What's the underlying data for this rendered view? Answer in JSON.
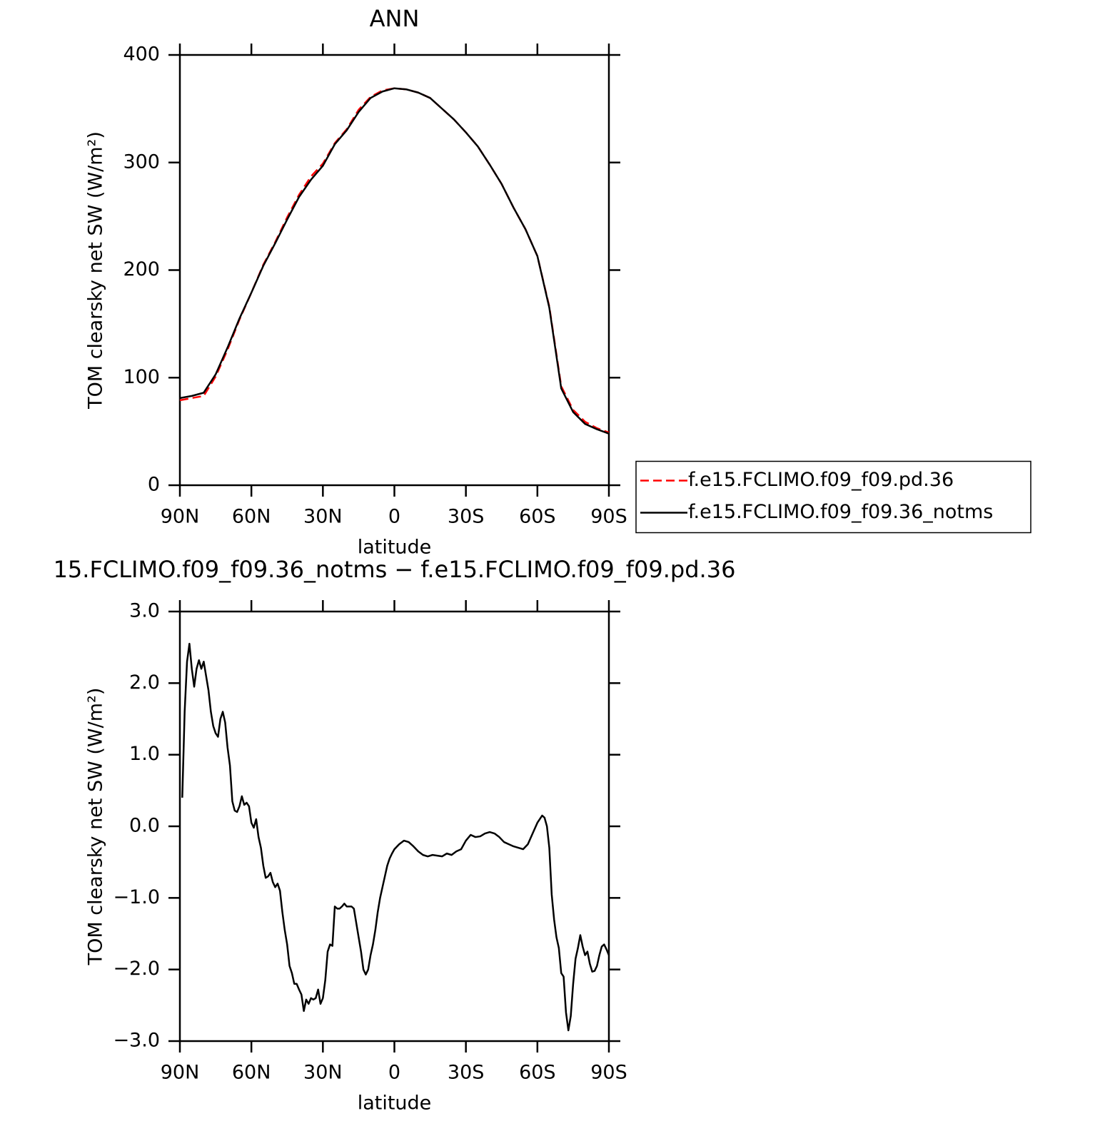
{
  "chart_data": [
    {
      "type": "line",
      "title": "ANN",
      "ylabel": "TOM clearsky net SW (W/m²)",
      "xlabel": "latitude",
      "xlim": [
        90,
        -90
      ],
      "xticks": [
        {
          "value": 90,
          "label": "90N"
        },
        {
          "value": 60,
          "label": "60N"
        },
        {
          "value": 30,
          "label": "30N"
        },
        0,
        {
          "value": -30,
          "label": "30S"
        },
        {
          "value": -60,
          "label": "60S"
        },
        {
          "value": -90,
          "label": "90S"
        }
      ],
      "ylim": [
        0,
        400
      ],
      "yticks": [
        0,
        100,
        200,
        300,
        400
      ],
      "legend": "right",
      "x": [
        90,
        85,
        80,
        75,
        70,
        65,
        60,
        55,
        50,
        45,
        40,
        35,
        30,
        25,
        20,
        15,
        10,
        5,
        0,
        -5,
        -10,
        -15,
        -20,
        -25,
        -30,
        -35,
        -40,
        -45,
        -50,
        -55,
        -60,
        -65,
        -70,
        -75,
        -80,
        -85,
        -90
      ],
      "series": [
        {
          "name": "f.e15.FCLIMO.f09_f09.pd.36",
          "color": "#ff0000",
          "linestyle": "dashed",
          "values": [
            79,
            81,
            83,
            101,
            126,
            154,
            179,
            205,
            226,
            249,
            270,
            287,
            299,
            318,
            331,
            349,
            361,
            367,
            369,
            368,
            365,
            360,
            350,
            340,
            328,
            315,
            298,
            280,
            258,
            238,
            213,
            166,
            92,
            70,
            59,
            53,
            49
          ]
        },
        {
          "name": "f.e15.FCLIMO.f09_f09.36_notms",
          "color": "#000000",
          "linestyle": "solid",
          "values": [
            81,
            83,
            86,
            103,
            128,
            155,
            179,
            204,
            225,
            247,
            268,
            284,
            297,
            317,
            330,
            347,
            360,
            366,
            369,
            368,
            365,
            360,
            350,
            340,
            328,
            315,
            298,
            280,
            258,
            238,
            213,
            165,
            90,
            68,
            57,
            52,
            48
          ]
        }
      ]
    },
    {
      "type": "line",
      "title": "15.FCLIMO.f09_f09.36_notms − f.e15.FCLIMO.f09_f09.pd.36",
      "ylabel": "TOM clearsky net SW (W/m²)",
      "xlabel": "latitude",
      "xlim": [
        90,
        -90
      ],
      "xticks": [
        {
          "value": 90,
          "label": "90N"
        },
        {
          "value": 60,
          "label": "60N"
        },
        {
          "value": 30,
          "label": "30N"
        },
        0,
        {
          "value": -30,
          "label": "30S"
        },
        {
          "value": -60,
          "label": "60S"
        },
        {
          "value": -90,
          "label": "90S"
        }
      ],
      "ylim": [
        -3,
        3
      ],
      "yticks": [
        {
          "value": -3,
          "label": "−3.0"
        },
        {
          "value": -2,
          "label": "−2.0"
        },
        {
          "value": -1,
          "label": "−1.0"
        },
        {
          "value": 0,
          "label": "0.0"
        },
        {
          "value": 1,
          "label": "1.0"
        },
        {
          "value": 2,
          "label": "2.0"
        },
        {
          "value": 3,
          "label": "3.0"
        }
      ],
      "x": [
        89,
        88,
        87,
        86,
        85,
        84,
        83,
        82,
        81,
        80,
        79,
        78,
        77,
        76,
        75,
        74,
        73,
        72,
        71,
        70,
        69,
        68,
        67,
        66,
        65,
        64,
        63,
        62,
        61,
        60,
        59,
        58,
        57,
        56,
        55,
        54,
        53,
        52,
        51,
        50,
        49,
        48,
        47,
        46,
        45,
        44,
        43,
        42,
        41,
        40,
        39,
        38,
        37,
        36,
        35,
        34,
        33,
        32,
        31,
        30,
        29,
        28,
        27,
        26,
        25,
        24,
        23,
        22,
        21,
        20,
        19,
        18,
        17,
        16,
        15,
        14,
        13,
        12,
        11,
        10,
        9,
        8,
        7,
        6,
        5,
        4,
        3,
        2,
        1,
        0,
        -2,
        -4,
        -6,
        -8,
        -10,
        -12,
        -14,
        -16,
        -18,
        -20,
        -22,
        -24,
        -26,
        -28,
        -30,
        -32,
        -34,
        -36,
        -38,
        -40,
        -42,
        -44,
        -46,
        -48,
        -50,
        -52,
        -54,
        -56,
        -58,
        -60,
        -62,
        -63,
        -64,
        -65,
        -66,
        -67,
        -68,
        -69,
        -70,
        -71,
        -72,
        -73,
        -74,
        -75,
        -76,
        -77,
        -78,
        -79,
        -80,
        -81,
        -82,
        -83,
        -84,
        -85,
        -86,
        -87,
        -88,
        -89,
        -90
      ],
      "series": [
        {
          "color": "#000000",
          "linestyle": "solid",
          "values": [
            0.4,
            1.6,
            2.3,
            2.55,
            2.2,
            1.95,
            2.2,
            2.32,
            2.2,
            2.3,
            2.1,
            1.9,
            1.6,
            1.4,
            1.3,
            1.25,
            1.5,
            1.6,
            1.45,
            1.1,
            0.85,
            0.35,
            0.22,
            0.2,
            0.28,
            0.42,
            0.3,
            0.33,
            0.28,
            0.05,
            -0.02,
            0.1,
            -0.15,
            -0.3,
            -0.55,
            -0.72,
            -0.7,
            -0.65,
            -0.78,
            -0.85,
            -0.8,
            -0.9,
            -1.2,
            -1.45,
            -1.65,
            -1.95,
            -2.05,
            -2.2,
            -2.2,
            -2.28,
            -2.35,
            -2.58,
            -2.42,
            -2.48,
            -2.4,
            -2.42,
            -2.4,
            -2.28,
            -2.48,
            -2.4,
            -2.15,
            -1.75,
            -1.65,
            -1.67,
            -1.12,
            -1.15,
            -1.15,
            -1.12,
            -1.08,
            -1.12,
            -1.12,
            -1.12,
            -1.15,
            -1.35,
            -1.55,
            -1.75,
            -2.0,
            -2.07,
            -2.0,
            -1.8,
            -1.65,
            -1.45,
            -1.2,
            -1.0,
            -0.85,
            -0.7,
            -0.55,
            -0.45,
            -0.38,
            -0.32,
            -0.25,
            -0.2,
            -0.22,
            -0.28,
            -0.35,
            -0.4,
            -0.42,
            -0.4,
            -0.41,
            -0.42,
            -0.38,
            -0.4,
            -0.35,
            -0.32,
            -0.2,
            -0.12,
            -0.15,
            -0.14,
            -0.1,
            -0.08,
            -0.1,
            -0.15,
            -0.22,
            -0.25,
            -0.28,
            -0.3,
            -0.32,
            -0.25,
            -0.1,
            0.05,
            0.15,
            0.12,
            0.0,
            -0.3,
            -0.95,
            -1.3,
            -1.55,
            -1.7,
            -2.05,
            -2.1,
            -2.6,
            -2.85,
            -2.65,
            -2.2,
            -1.85,
            -1.7,
            -1.52,
            -1.68,
            -1.8,
            -1.75,
            -1.92,
            -2.03,
            -2.02,
            -1.95,
            -1.8,
            -1.68,
            -1.65,
            -1.72,
            -1.8
          ]
        }
      ]
    }
  ]
}
